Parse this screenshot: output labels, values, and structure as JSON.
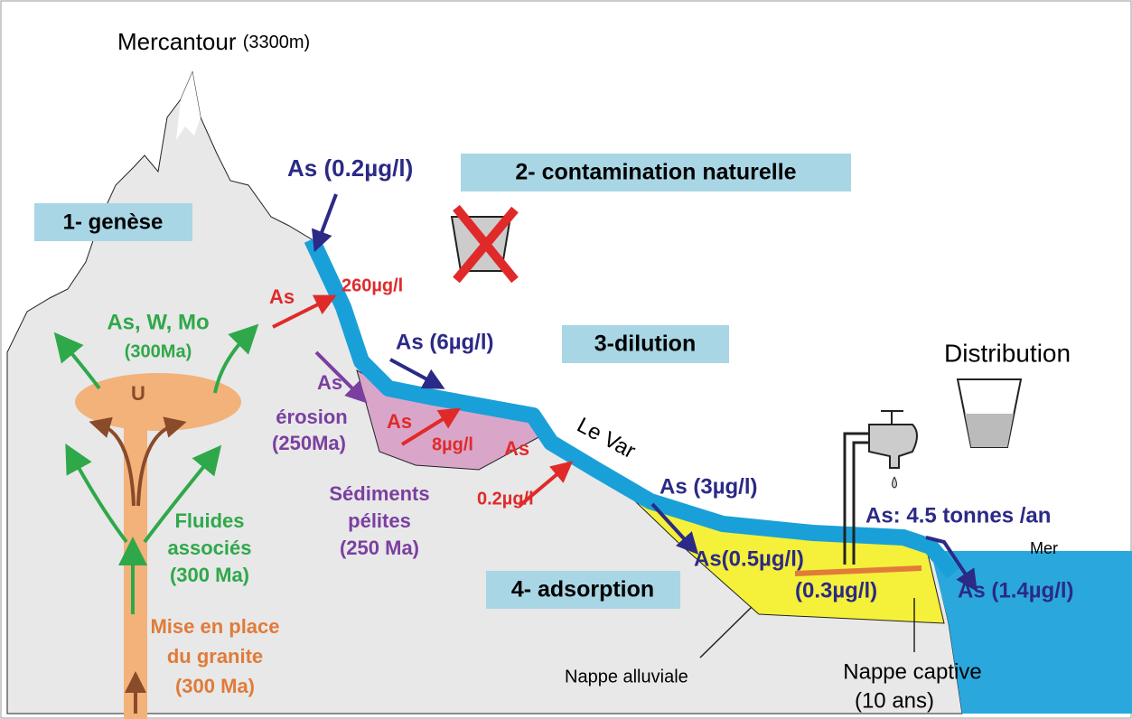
{
  "title": {
    "name": "Mercantour",
    "elevation": "(3300m)"
  },
  "stages": [
    "1- genèse",
    "2- contamination naturelle",
    "3-dilution",
    "4- adsorption"
  ],
  "genesis": {
    "elements": "As, W, Mo",
    "elements_age": "(300Ma)",
    "uranium": "U",
    "fluids": [
      "Fluides",
      "associés",
      "(300 Ma)"
    ],
    "granite": [
      "Mise en place",
      "du granite",
      "(300 Ma)"
    ]
  },
  "river": {
    "name": "Le Var",
    "source": "As (0.2µg/l)",
    "input": "As",
    "input_conc": "260µg/l",
    "dilution": "As (6µg/l)",
    "downstream": "As (3µg/l)",
    "flux": "As: 4.5 tonnes /an",
    "sea": "As (1.4µg/l)"
  },
  "sediments": {
    "erosion": [
      "As",
      "érosion",
      "(250Ma)"
    ],
    "input": "As",
    "input_conc": "8µg/l",
    "name": [
      "Sédiments",
      "pélites",
      "(250 Ma)"
    ]
  },
  "aquifer": {
    "input": "As",
    "input_conc": "0.2µg/l",
    "alluvial_conc": "As(0.5µg/l)",
    "captive_conc": "(0.3µg/l)",
    "alluvial": "Nappe alluviale",
    "captive": [
      "Nappe captive",
      "(10 ans)"
    ]
  },
  "distribution": "Distribution",
  "sea": "Mer"
}
